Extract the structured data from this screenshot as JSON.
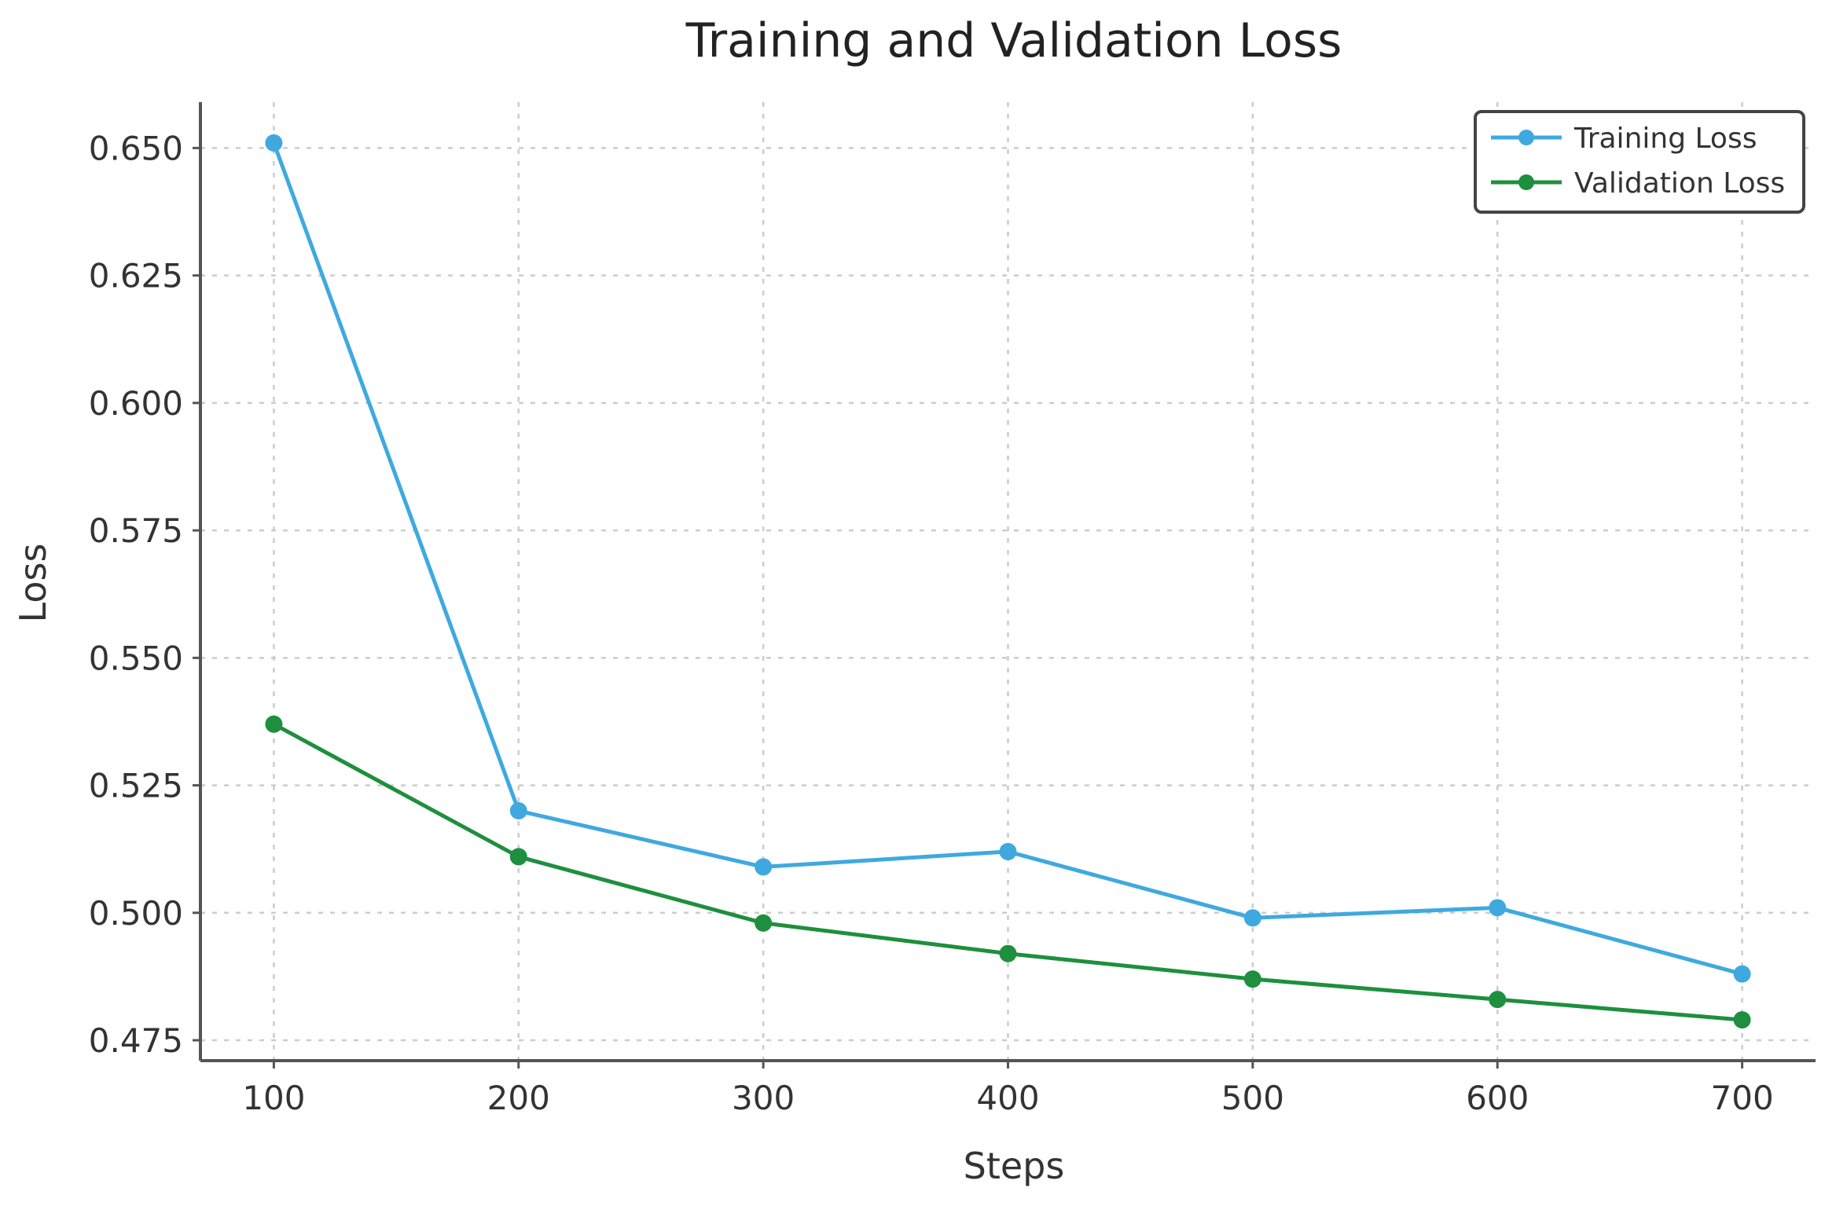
{
  "chart_data": {
    "type": "line",
    "title": "Training and Validation Loss",
    "xlabel": "Steps",
    "ylabel": "Loss",
    "x": [
      100,
      200,
      300,
      400,
      500,
      600,
      700
    ],
    "xticks": [
      "100",
      "200",
      "300",
      "400",
      "500",
      "600",
      "700"
    ],
    "yticks": [
      "0.475",
      "0.500",
      "0.525",
      "0.550",
      "0.575",
      "0.600",
      "0.625",
      "0.650"
    ],
    "xlim": [
      70,
      730
    ],
    "ylim": [
      0.471,
      0.659
    ],
    "grid": true,
    "legend_position": "top-right",
    "series": [
      {
        "name": "Training Loss",
        "color": "#3fa9df",
        "marker": "circle",
        "values": [
          0.651,
          0.52,
          0.509,
          0.512,
          0.499,
          0.501,
          0.488
        ]
      },
      {
        "name": "Validation Loss",
        "color": "#1e8f3e",
        "marker": "circle",
        "values": [
          0.537,
          0.511,
          0.498,
          0.492,
          0.487,
          0.483,
          0.479
        ]
      }
    ]
  }
}
